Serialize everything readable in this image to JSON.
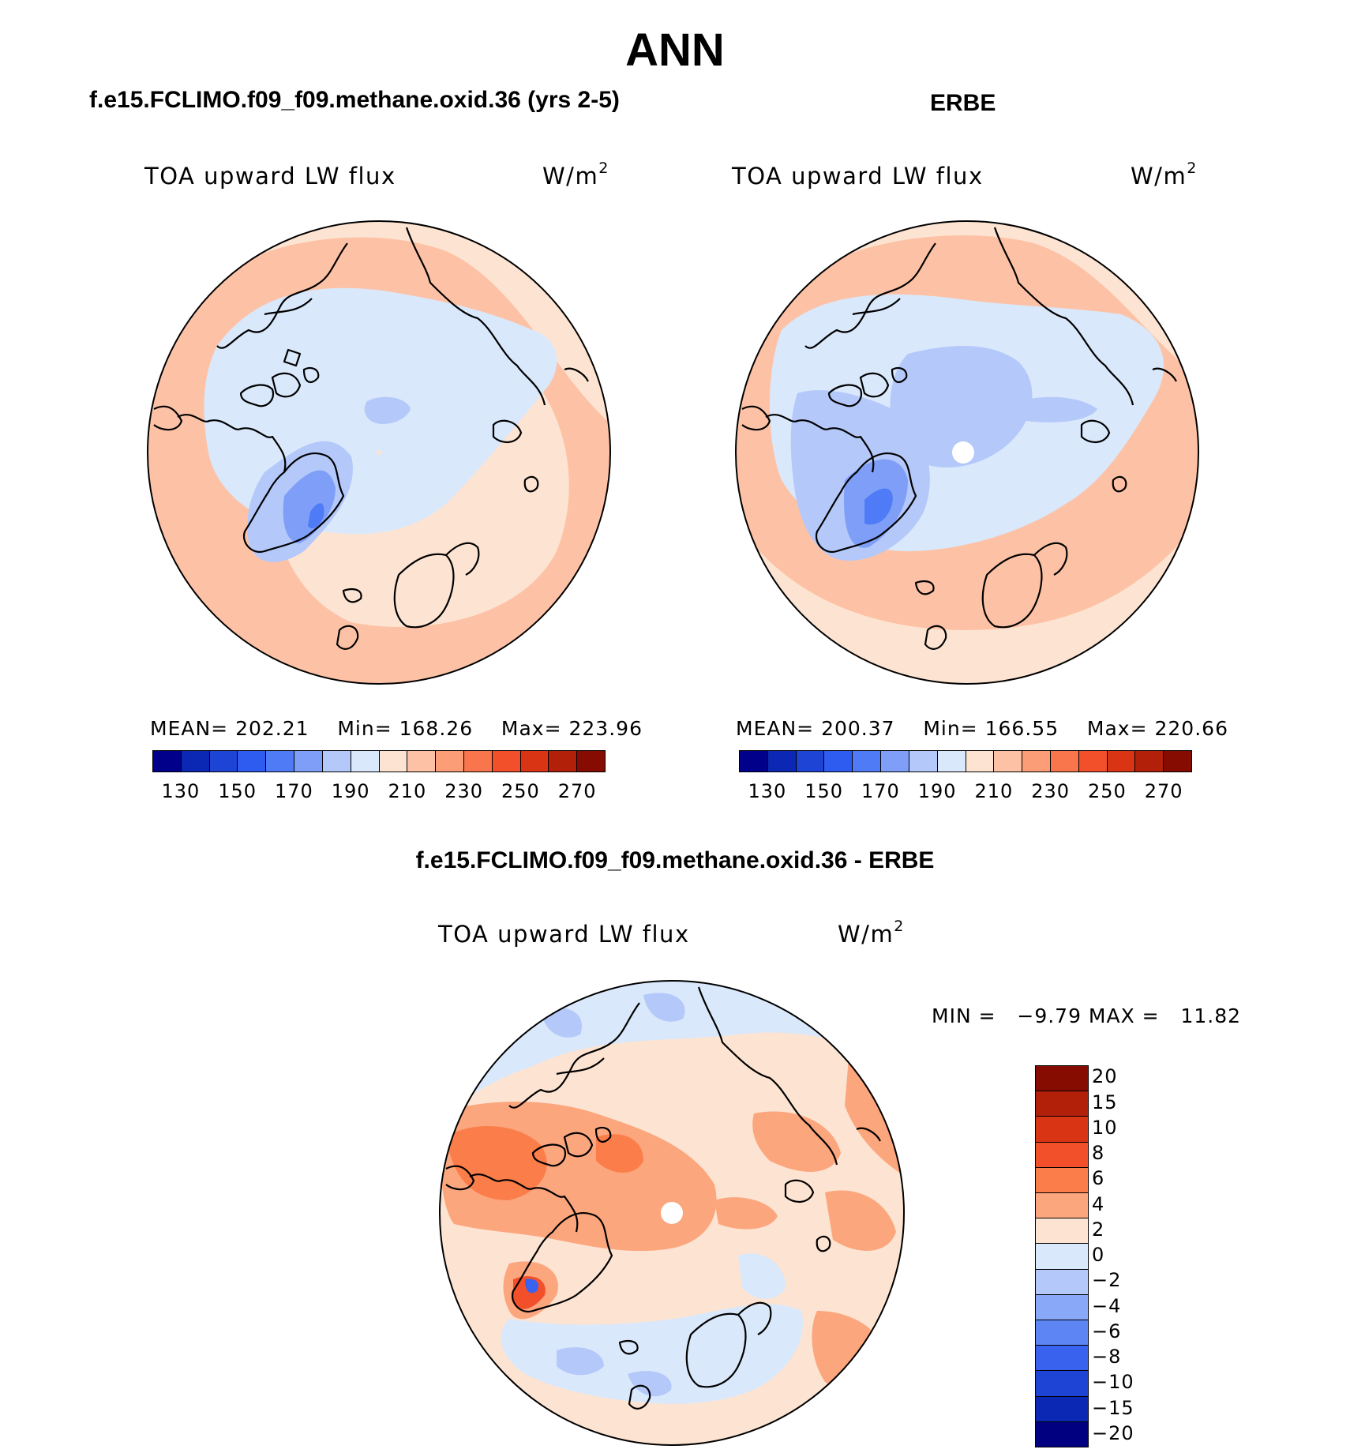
{
  "figure": {
    "title": "ANN"
  },
  "panels": [
    {
      "case_title": "f.e15.FCLIMO.f09_f09.methane.oxid.36 (yrs 2-5)",
      "variable": "TOA upward LW flux",
      "units": "W/m",
      "units_exp": "2",
      "stats": {
        "mean_label": "MEAN=",
        "mean": "202.21",
        "min_label": "Min=",
        "min": "168.26",
        "max_label": "Max=",
        "max": "223.96"
      }
    },
    {
      "case_title": "ERBE",
      "variable": "TOA upward LW flux",
      "units": "W/m",
      "units_exp": "2",
      "stats": {
        "mean_label": "MEAN=",
        "mean": "200.37",
        "min_label": "Min=",
        "min": "166.55",
        "max_label": "Max=",
        "max": "220.66"
      }
    }
  ],
  "diff_panel": {
    "case_title": "f.e15.FCLIMO.f09_f09.methane.oxid.36 - ERBE",
    "variable": "TOA upward LW flux",
    "units": "W/m",
    "units_exp": "2",
    "minmax_text": "MIN =   −9.79 MAX =   11.82"
  },
  "colorbar_abs": {
    "tick_labels": [
      "130",
      "150",
      "170",
      "190",
      "210",
      "230",
      "250",
      "270"
    ],
    "colors": [
      "#00008b",
      "#0b28b4",
      "#1e44d6",
      "#2f5cf0",
      "#4f7cf6",
      "#7e9ef8",
      "#b4c8fa",
      "#d9e8fb",
      "#fde4d2",
      "#fdc2a6",
      "#fb9e78",
      "#f9764d",
      "#f2502a",
      "#d93515",
      "#b22009",
      "#860c02"
    ]
  },
  "colorbar_diff": {
    "tick_labels": [
      "20",
      "15",
      "10",
      "8",
      "6",
      "4",
      "2",
      "0",
      "−2",
      "−4",
      "−6",
      "−8",
      "−10",
      "−15",
      "−20"
    ],
    "colors": [
      "#860c02",
      "#b22009",
      "#d93515",
      "#f2502a",
      "#fb7d4a",
      "#fca67e",
      "#fde4d2",
      "#d9e8fb",
      "#b4c8fa",
      "#89a8f8",
      "#5d86f4",
      "#3963ee",
      "#1e44d6",
      "#0b28b4",
      "#000080"
    ]
  },
  "map_colors": {
    "land_outline": "#000000",
    "missing": "#ffffff"
  }
}
